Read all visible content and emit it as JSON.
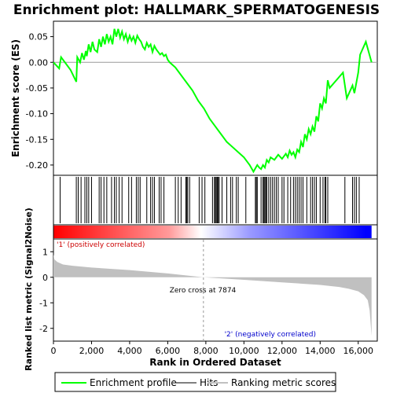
{
  "chart_data": {
    "type": "line",
    "title": "Enrichment plot: HALLMARK_SPERMATOGENESIS",
    "top_panel": {
      "ylabel": "Enrichment score (ES)",
      "ylim": [
        -0.22,
        0.08
      ],
      "yticks": [
        0.05,
        0.0,
        -0.05,
        -0.1,
        -0.15,
        -0.2
      ],
      "ytick_labels": [
        "0.05",
        "0.00",
        "-0.05",
        "-0.10",
        "-0.15",
        "-0.20"
      ],
      "series": [
        {
          "name": "Enrichment profile",
          "color": "#00ff00",
          "x": [
            0,
            300,
            400,
            900,
            1200,
            1250,
            1400,
            1500,
            1600,
            1700,
            1750,
            1850,
            1950,
            2050,
            2150,
            2300,
            2400,
            2500,
            2600,
            2700,
            2800,
            2900,
            3000,
            3100,
            3200,
            3300,
            3400,
            3500,
            3600,
            3700,
            3800,
            3900,
            4000,
            4100,
            4200,
            4300,
            4400,
            4500,
            4600,
            4700,
            4800,
            4900,
            5000,
            5100,
            5200,
            5300,
            5400,
            5500,
            5600,
            5700,
            5800,
            5900,
            6000,
            6100,
            6400,
            6700,
            7000,
            7300,
            7600,
            7900,
            8200,
            8500,
            8800,
            9100,
            9400,
            9700,
            10000,
            10300,
            10500,
            10700,
            10800,
            10900,
            11000,
            11100,
            11200,
            11300,
            11400,
            11600,
            11800,
            12000,
            12200,
            12300,
            12400,
            12500,
            12600,
            12700,
            12800,
            12900,
            13000,
            13100,
            13200,
            13300,
            13400,
            13500,
            13600,
            13700,
            13800,
            13900,
            14000,
            14100,
            14200,
            14300,
            14400,
            14500,
            15200,
            15400,
            15700,
            15800,
            15900,
            16000,
            16100,
            16400,
            16700
          ],
          "y": [
            0.0,
            -0.012,
            0.01,
            -0.015,
            -0.038,
            0.01,
            0.0,
            0.018,
            0.005,
            0.022,
            0.012,
            0.035,
            0.02,
            0.04,
            0.025,
            0.02,
            0.045,
            0.03,
            0.05,
            0.035,
            0.055,
            0.04,
            0.05,
            0.035,
            0.065,
            0.05,
            0.065,
            0.048,
            0.06,
            0.045,
            0.055,
            0.04,
            0.052,
            0.042,
            0.05,
            0.038,
            0.052,
            0.045,
            0.04,
            0.03,
            0.025,
            0.038,
            0.03,
            0.035,
            0.02,
            0.032,
            0.025,
            0.02,
            0.015,
            0.018,
            0.012,
            0.015,
            0.005,
            0.0,
            -0.01,
            -0.025,
            -0.04,
            -0.055,
            -0.075,
            -0.09,
            -0.11,
            -0.125,
            -0.14,
            -0.155,
            -0.165,
            -0.175,
            -0.185,
            -0.2,
            -0.213,
            -0.2,
            -0.205,
            -0.208,
            -0.2,
            -0.205,
            -0.19,
            -0.195,
            -0.185,
            -0.19,
            -0.18,
            -0.188,
            -0.178,
            -0.185,
            -0.172,
            -0.18,
            -0.175,
            -0.185,
            -0.17,
            -0.175,
            -0.155,
            -0.165,
            -0.14,
            -0.15,
            -0.13,
            -0.14,
            -0.125,
            -0.135,
            -0.105,
            -0.115,
            -0.08,
            -0.09,
            -0.07,
            -0.08,
            -0.035,
            -0.05,
            -0.02,
            -0.07,
            -0.045,
            -0.06,
            -0.04,
            -0.02,
            0.015,
            0.04,
            0.0
          ]
        }
      ]
    },
    "hits_panel": {
      "legend_name": "Hits",
      "hit_ranks": [
        350,
        1200,
        1300,
        1450,
        1650,
        1750,
        1850,
        2000,
        2400,
        2500,
        2650,
        2800,
        3050,
        3200,
        3300,
        3450,
        3600,
        3950,
        4100,
        4350,
        4450,
        4550,
        4900,
        5100,
        5200,
        5300,
        5550,
        5650,
        5800,
        6400,
        6550,
        6700,
        6950,
        7000,
        7050,
        7150,
        7650,
        7800,
        7950,
        8350,
        8450,
        8500,
        8550,
        8600,
        8650,
        8700,
        8850,
        9100,
        9300,
        9400,
        9600,
        9700,
        10100,
        10600,
        10650,
        10700,
        10900,
        11000,
        11050,
        11100,
        11150,
        11200,
        11300,
        11400,
        11500,
        11600,
        11700,
        11800,
        12000,
        12100,
        12300,
        12450,
        12600,
        12700,
        12800,
        12900,
        13000,
        13100,
        13300,
        13500,
        13600,
        13700,
        13800,
        14000,
        14150,
        14250,
        14300,
        14400,
        15300,
        15700,
        15800,
        15900,
        16050
      ]
    },
    "ranking_bar": {
      "colors_left_to_right": [
        "#ff0000",
        "#ffffff",
        "#0000ff"
      ],
      "label_positive": "'1' (positively correlated)",
      "label_negative": "'2' (negatively correlated)",
      "positive_label_color": "#cc0000",
      "negative_label_color": "#0000cc"
    },
    "bottom_panel": {
      "ylabel": "Ranked list metric (Signal2Noise)",
      "ylim": [
        -2.5,
        1.5
      ],
      "yticks": [
        1,
        0,
        -1,
        -2
      ],
      "ytick_labels": [
        "1",
        "0",
        "-1",
        "-2"
      ],
      "zero_cross_text": "Zero cross at 7874",
      "zero_cross_rank": 7874,
      "fill_color": "#c0c0c0",
      "metric_profile": {
        "x": [
          0,
          50,
          200,
          500,
          1000,
          2000,
          4000,
          6000,
          7874,
          10000,
          12000,
          14000,
          15000,
          15500,
          16000,
          16300,
          16500,
          16600,
          16700
        ],
        "y": [
          0.9,
          0.7,
          0.6,
          0.5,
          0.45,
          0.38,
          0.28,
          0.15,
          0.0,
          -0.1,
          -0.2,
          -0.3,
          -0.38,
          -0.45,
          -0.55,
          -0.7,
          -0.9,
          -1.3,
          -2.3
        ]
      }
    },
    "xaxis": {
      "label": "Rank in Ordered Dataset",
      "xlim": [
        0,
        17000
      ],
      "ticks": [
        0,
        2000,
        4000,
        6000,
        8000,
        10000,
        12000,
        14000,
        16000
      ],
      "tick_labels": [
        "0",
        "2,000",
        "4,000",
        "6,000",
        "8,000",
        "10,000",
        "12,000",
        "14,000",
        "16,000"
      ]
    },
    "legend": {
      "items": [
        {
          "label": "Enrichment profile",
          "color": "#00ff00"
        },
        {
          "label": "Hits",
          "color": "#000000"
        },
        {
          "label": "Ranking metric scores",
          "color": "#c0c0c0"
        }
      ]
    }
  }
}
